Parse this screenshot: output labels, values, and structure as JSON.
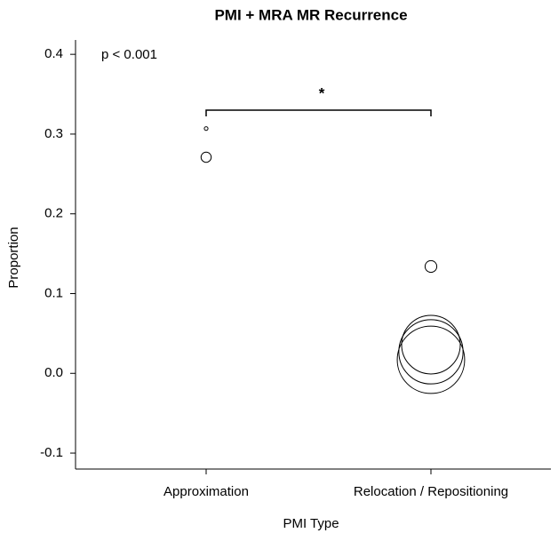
{
  "chart_data": {
    "type": "bubble",
    "title": "PMI + MRA MR Recurrence",
    "x_label": "PMI Type",
    "y_label": "Proportion",
    "annotation": "p < 0.001",
    "significance": "*",
    "groups": [
      {
        "category": "Approximation",
        "values": [
          0.307,
          0.271
        ],
        "sizes": [
          0.4,
          3
        ]
      },
      {
        "category": "Relocation / Repositioning",
        "values": [
          0.134,
          0.036,
          0.027,
          0.017
        ],
        "sizes": [
          4,
          100,
          120,
          132
        ]
      }
    ],
    "color": "#000000",
    "ylim": [
      -0.12,
      0.418
    ],
    "yticks": [
      -0.1,
      {
        "value": 0,
        "label": "0.0"
      },
      0.1,
      0.2,
      0.3,
      0.4
    ]
  }
}
